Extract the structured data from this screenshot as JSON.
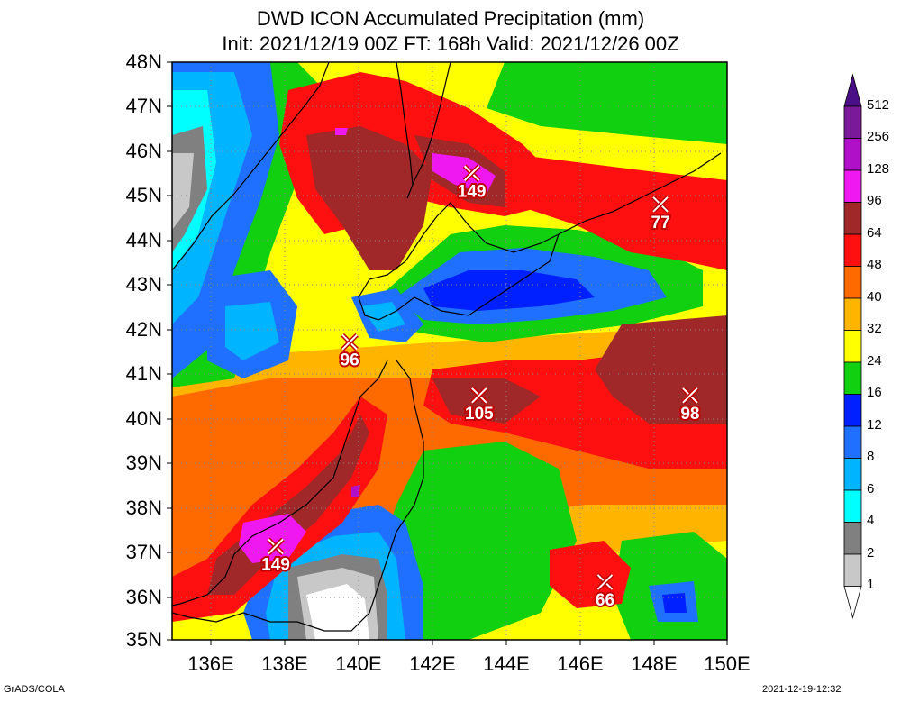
{
  "title_line1": "DWD ICON Accumulated Precipitation (mm)",
  "title_line2": "Init: 2021/12/19 00Z  FT: 168h  Valid: 2021/12/26 00Z",
  "lat_labels": [
    "48N",
    "47N",
    "46N",
    "45N",
    "44N",
    "43N",
    "42N",
    "41N",
    "40N",
    "39N",
    "38N",
    "37N",
    "36N",
    "35N"
  ],
  "lon_labels": [
    "136E",
    "138E",
    "140E",
    "142E",
    "144E",
    "146E",
    "148E",
    "150E"
  ],
  "colorbar": {
    "levels": [
      "512",
      "256",
      "128",
      "96",
      "64",
      "48",
      "40",
      "32",
      "24",
      "16",
      "12",
      "8",
      "6",
      "4",
      "2",
      "1"
    ],
    "colors": {
      "gt512": "#4a0f86",
      "256_512": "#7a1a9a",
      "128_256": "#b010c8",
      "96_128": "#f018f0",
      "64_96": "#a02828",
      "48_64": "#ff1010",
      "40_48": "#ff6a00",
      "32_40": "#ffb400",
      "24_32": "#ffff00",
      "16_24": "#10d010",
      "12_16": "#0020ff",
      "8_12": "#2070ff",
      "6_8": "#00b4ff",
      "4_6": "#00ffff",
      "2_4": "#808080",
      "1_2": "#c8c8c8",
      "lt1": "#ffffff"
    }
  },
  "markers": [
    {
      "value": "149",
      "lat": 45.5,
      "lon": 143.1
    },
    {
      "value": "77",
      "lat": 44.8,
      "lon": 148.2
    },
    {
      "value": "96",
      "lat": 41.7,
      "lon": 139.8
    },
    {
      "value": "105",
      "lat": 40.5,
      "lon": 143.3
    },
    {
      "value": "98",
      "lat": 40.5,
      "lon": 149.0
    },
    {
      "value": "149",
      "lat": 37.1,
      "lon": 137.8
    },
    {
      "value": "66",
      "lat": 36.3,
      "lon": 146.7
    }
  ],
  "footer_left": "GrADS/COLA",
  "footer_right": "2021-12-19-12:32"
}
